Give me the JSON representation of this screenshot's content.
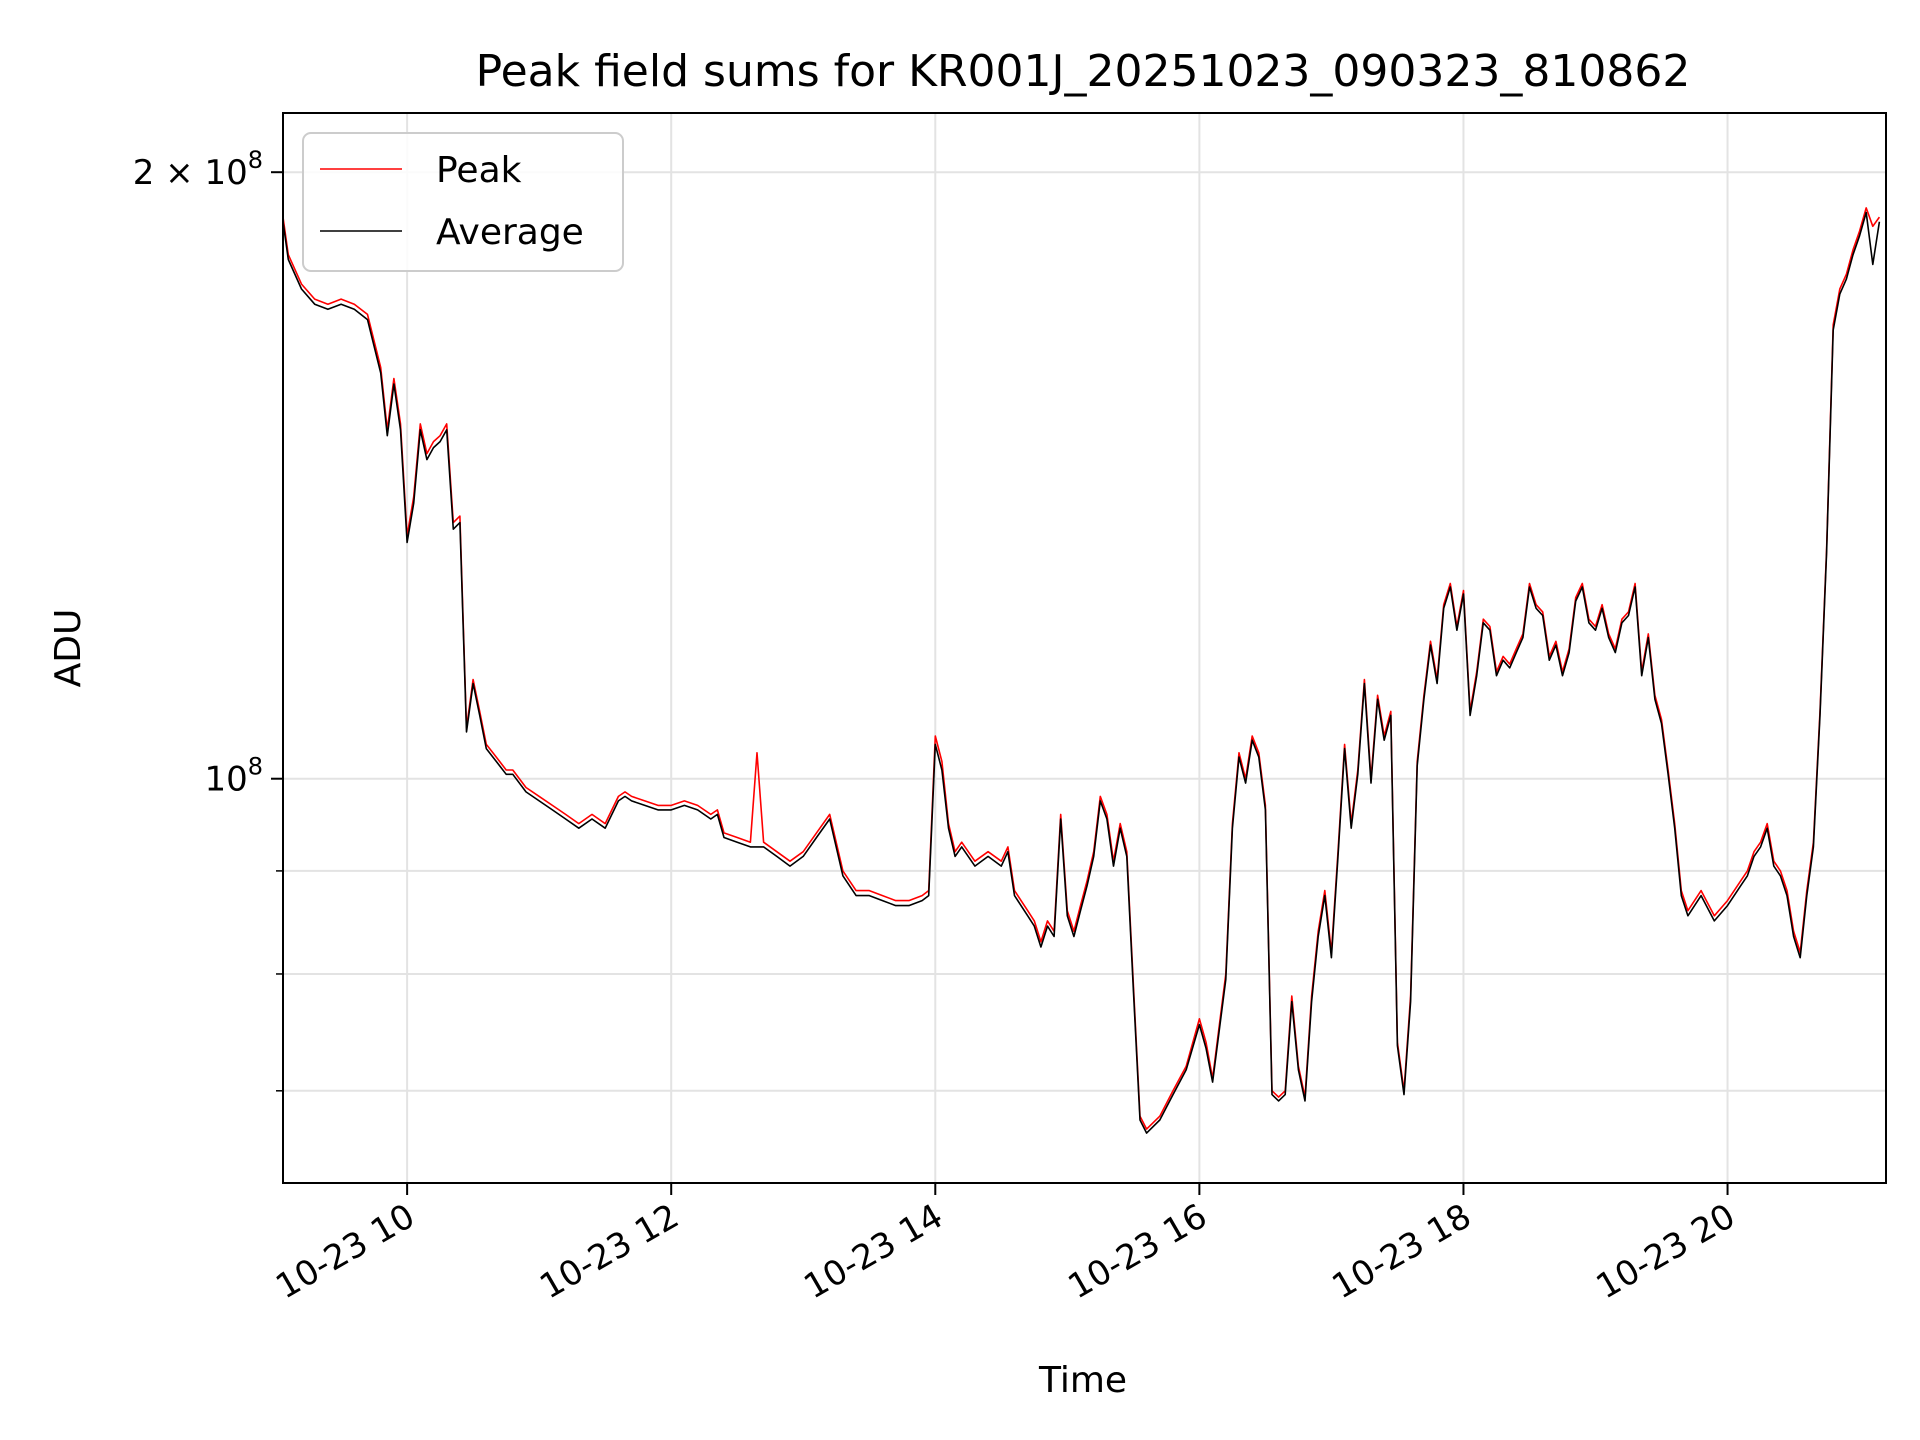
{
  "chart_data": {
    "type": "line",
    "title": "Peak field sums for KR001J_20251023_090323_810862",
    "xlabel": "Time",
    "ylabel": "ADU",
    "yscale": "log",
    "xlim_hours": [
      9.06,
      21.2
    ],
    "ylim": [
      63000000,
      214000000
    ],
    "grid": true,
    "legend_position": "top-left",
    "x_ticks": [
      {
        "value": 10,
        "label": "10-23 10"
      },
      {
        "value": 12,
        "label": "10-23 12"
      },
      {
        "value": 14,
        "label": "10-23 14"
      },
      {
        "value": 16,
        "label": "10-23 16"
      },
      {
        "value": 18,
        "label": "10-23 18"
      },
      {
        "value": 20,
        "label": "10-23 20"
      }
    ],
    "y_major_ticks": [
      {
        "value": 100000000,
        "base": "10",
        "exp": "8",
        "prefix": ""
      },
      {
        "value": 200000000,
        "base": "10",
        "exp": "8",
        "prefix": "2 × "
      }
    ],
    "y_minor_ticks": [
      70000000,
      80000000,
      90000000
    ],
    "x_hours": [
      9.06,
      9.1,
      9.2,
      9.3,
      9.4,
      9.5,
      9.6,
      9.7,
      9.8,
      9.85,
      9.9,
      9.95,
      10.0,
      10.05,
      10.1,
      10.15,
      10.2,
      10.25,
      10.3,
      10.35,
      10.4,
      10.45,
      10.5,
      10.55,
      10.6,
      10.65,
      10.7,
      10.75,
      10.8,
      10.9,
      11.0,
      11.1,
      11.2,
      11.3,
      11.4,
      11.5,
      11.6,
      11.65,
      11.7,
      11.8,
      11.9,
      12.0,
      12.1,
      12.2,
      12.3,
      12.35,
      12.4,
      12.5,
      12.6,
      12.65,
      12.7,
      12.8,
      12.9,
      13.0,
      13.1,
      13.2,
      13.3,
      13.4,
      13.5,
      13.6,
      13.7,
      13.8,
      13.9,
      13.95,
      14.0,
      14.05,
      14.1,
      14.15,
      14.2,
      14.3,
      14.4,
      14.5,
      14.55,
      14.6,
      14.7,
      14.75,
      14.8,
      14.85,
      14.9,
      14.95,
      15.0,
      15.05,
      15.1,
      15.15,
      15.2,
      15.25,
      15.3,
      15.35,
      15.4,
      15.45,
      15.5,
      15.55,
      15.6,
      15.7,
      15.8,
      15.9,
      16.0,
      16.05,
      16.1,
      16.2,
      16.25,
      16.3,
      16.35,
      16.4,
      16.45,
      16.5,
      16.55,
      16.6,
      16.65,
      16.7,
      16.75,
      16.8,
      16.85,
      16.9,
      16.95,
      17.0,
      17.05,
      17.1,
      17.15,
      17.2,
      17.25,
      17.3,
      17.35,
      17.4,
      17.45,
      17.5,
      17.55,
      17.6,
      17.65,
      17.7,
      17.75,
      17.8,
      17.85,
      17.9,
      17.95,
      18.0,
      18.05,
      18.1,
      18.15,
      18.2,
      18.25,
      18.3,
      18.35,
      18.4,
      18.45,
      18.5,
      18.55,
      18.6,
      18.65,
      18.7,
      18.75,
      18.8,
      18.85,
      18.9,
      18.95,
      19.0,
      19.05,
      19.1,
      19.15,
      19.2,
      19.25,
      19.3,
      19.35,
      19.4,
      19.45,
      19.5,
      19.55,
      19.6,
      19.65,
      19.7,
      19.8,
      19.9,
      20.0,
      20.1,
      20.15,
      20.2,
      20.25,
      20.3,
      20.35,
      20.4,
      20.45,
      20.5,
      20.55,
      20.6,
      20.65,
      20.7,
      20.75,
      20.8,
      20.85,
      20.9,
      20.95,
      21.0,
      21.05,
      21.1,
      21.15,
      21.2
    ],
    "series": [
      {
        "name": "Peak",
        "color": "#ff0000",
        "values": [
          190000000,
          182000000,
          176000000,
          173000000,
          172000000,
          173000000,
          172000000,
          170000000,
          160000000,
          149000000,
          158000000,
          150000000,
          132000000,
          138000000,
          150000000,
          145000000,
          147000000,
          148000000,
          150000000,
          134000000,
          135000000,
          106000000,
          112000000,
          108000000,
          104000000,
          103000000,
          102000000,
          101000000,
          101000000,
          99000000,
          98000000,
          97000000,
          96000000,
          95000000,
          96000000,
          95000000,
          98000000,
          98500000,
          98000000,
          97500000,
          97000000,
          97000000,
          97500000,
          97000000,
          96000000,
          96500000,
          94000000,
          93500000,
          93000000,
          103000000,
          93000000,
          92000000,
          91000000,
          92000000,
          94000000,
          96000000,
          90000000,
          88000000,
          88000000,
          87500000,
          87000000,
          87000000,
          87500000,
          88000000,
          105000000,
          102000000,
          95000000,
          92000000,
          93000000,
          91000000,
          92000000,
          91000000,
          92500000,
          88000000,
          86000000,
          85000000,
          83000000,
          85000000,
          84000000,
          96000000,
          86000000,
          84000000,
          86500000,
          89000000,
          92000000,
          98000000,
          96000000,
          91000000,
          95000000,
          92000000,
          79000000,
          68000000,
          67000000,
          68000000,
          70000000,
          72000000,
          76000000,
          74000000,
          71000000,
          80000000,
          95000000,
          103000000,
          100000000,
          105000000,
          103000000,
          97000000,
          70000000,
          69500000,
          70000000,
          78000000,
          72000000,
          69500000,
          78000000,
          84000000,
          88000000,
          82000000,
          92000000,
          104000000,
          95000000,
          101000000,
          112000000,
          100000000,
          110000000,
          105000000,
          108000000,
          74000000,
          70000000,
          78000000,
          102000000,
          110000000,
          117000000,
          112000000,
          122000000,
          125000000,
          119000000,
          124000000,
          108000000,
          113000000,
          120000000,
          119000000,
          113000000,
          115000000,
          114000000,
          116000000,
          118000000,
          125000000,
          122000000,
          121000000,
          115000000,
          117000000,
          113000000,
          116000000,
          123000000,
          125000000,
          120000000,
          119000000,
          122000000,
          118000000,
          116000000,
          120000000,
          121000000,
          125000000,
          113000000,
          118000000,
          110000000,
          107000000,
          101000000,
          95000000,
          88000000,
          86000000,
          88000000,
          85500000,
          87000000,
          89000000,
          90000000,
          92000000,
          93000000,
          95000000,
          91000000,
          90000000,
          88000000,
          84000000,
          82000000,
          88000000,
          93000000,
          108000000,
          130000000,
          168000000,
          175000000,
          178000000,
          183000000,
          187000000,
          192000000,
          188000000,
          190000000
        ]
      },
      {
        "name": "Average",
        "color": "#000000",
        "values": [
          189000000,
          181000000,
          175000000,
          172000000,
          171000000,
          172000000,
          171000000,
          169000000,
          159000000,
          148000000,
          157000000,
          149000000,
          131000000,
          137000000,
          149000000,
          144000000,
          146000000,
          147000000,
          149000000,
          133000000,
          134000000,
          105500000,
          111500000,
          107500000,
          103500000,
          102500000,
          101500000,
          100500000,
          100500000,
          98500000,
          97500000,
          96500000,
          95500000,
          94500000,
          95500000,
          94500000,
          97500000,
          98000000,
          97500000,
          97000000,
          96500000,
          96500000,
          97000000,
          96500000,
          95500000,
          96000000,
          93500000,
          93000000,
          92500000,
          92500000,
          92500000,
          91500000,
          90500000,
          91500000,
          93500000,
          95500000,
          89500000,
          87500000,
          87500000,
          87000000,
          86500000,
          86500000,
          87000000,
          87500000,
          104000000,
          101000000,
          94500000,
          91500000,
          92500000,
          90500000,
          91500000,
          90500000,
          92000000,
          87500000,
          85500000,
          84500000,
          82500000,
          84500000,
          83500000,
          95500000,
          85500000,
          83500000,
          86000000,
          88500000,
          91500000,
          97500000,
          95500000,
          90500000,
          94500000,
          91500000,
          78500000,
          67700000,
          66700000,
          67700000,
          69700000,
          71700000,
          75500000,
          73500000,
          70700000,
          79500000,
          94500000,
          102500000,
          99500000,
          104500000,
          102500000,
          96500000,
          69700000,
          69200000,
          69700000,
          77500000,
          71700000,
          69200000,
          77500000,
          83500000,
          87500000,
          81500000,
          91500000,
          103500000,
          94500000,
          100500000,
          111500000,
          99500000,
          109500000,
          104500000,
          107500000,
          73700000,
          69700000,
          77500000,
          101500000,
          109500000,
          116500000,
          111500000,
          121500000,
          124500000,
          118500000,
          123500000,
          107500000,
          112500000,
          119500000,
          118500000,
          112500000,
          114500000,
          113500000,
          115500000,
          117500000,
          124500000,
          121500000,
          120500000,
          114500000,
          116500000,
          112500000,
          115500000,
          122500000,
          124500000,
          119500000,
          118500000,
          121500000,
          117500000,
          115500000,
          119500000,
          120500000,
          124500000,
          112500000,
          117500000,
          109500000,
          106500000,
          100500000,
          94500000,
          87500000,
          85500000,
          87500000,
          85000000,
          86500000,
          88500000,
          89500000,
          91500000,
          92500000,
          94500000,
          90500000,
          89500000,
          87500000,
          83500000,
          81500000,
          87500000,
          92500000,
          107500000,
          129500000,
          167000000,
          174000000,
          177000000,
          182000000,
          186000000,
          191000000,
          180000000,
          189000000
        ]
      }
    ]
  }
}
